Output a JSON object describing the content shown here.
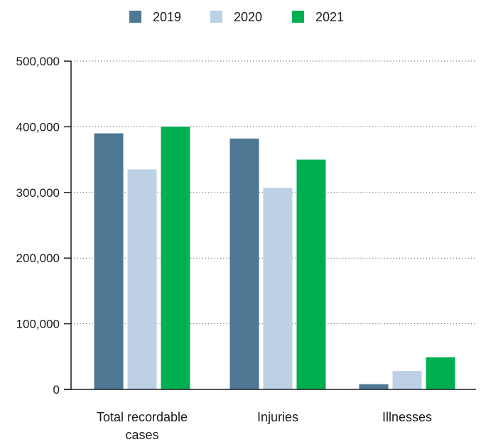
{
  "chart_data": {
    "type": "bar",
    "categories": [
      [
        "Total recordable",
        "cases"
      ],
      [
        "Injuries"
      ],
      [
        "Illnesses"
      ]
    ],
    "series": [
      {
        "name": "2019",
        "color": "#4e7794",
        "values": [
          390000,
          382000,
          8000
        ]
      },
      {
        "name": "2020",
        "color": "#bcd1e6",
        "values": [
          335000,
          307000,
          28000
        ]
      },
      {
        "name": "2021",
        "color": "#00b050",
        "values": [
          400000,
          350000,
          49000
        ]
      }
    ],
    "ylim": [
      0,
      500000
    ],
    "yticks": [
      0,
      100000,
      200000,
      300000,
      400000,
      500000
    ],
    "ytick_labels": [
      "0",
      "100,000",
      "200,000",
      "300,000",
      "400,000",
      "500,000"
    ],
    "grid": "horizontal dotted",
    "legend": "top-center"
  }
}
